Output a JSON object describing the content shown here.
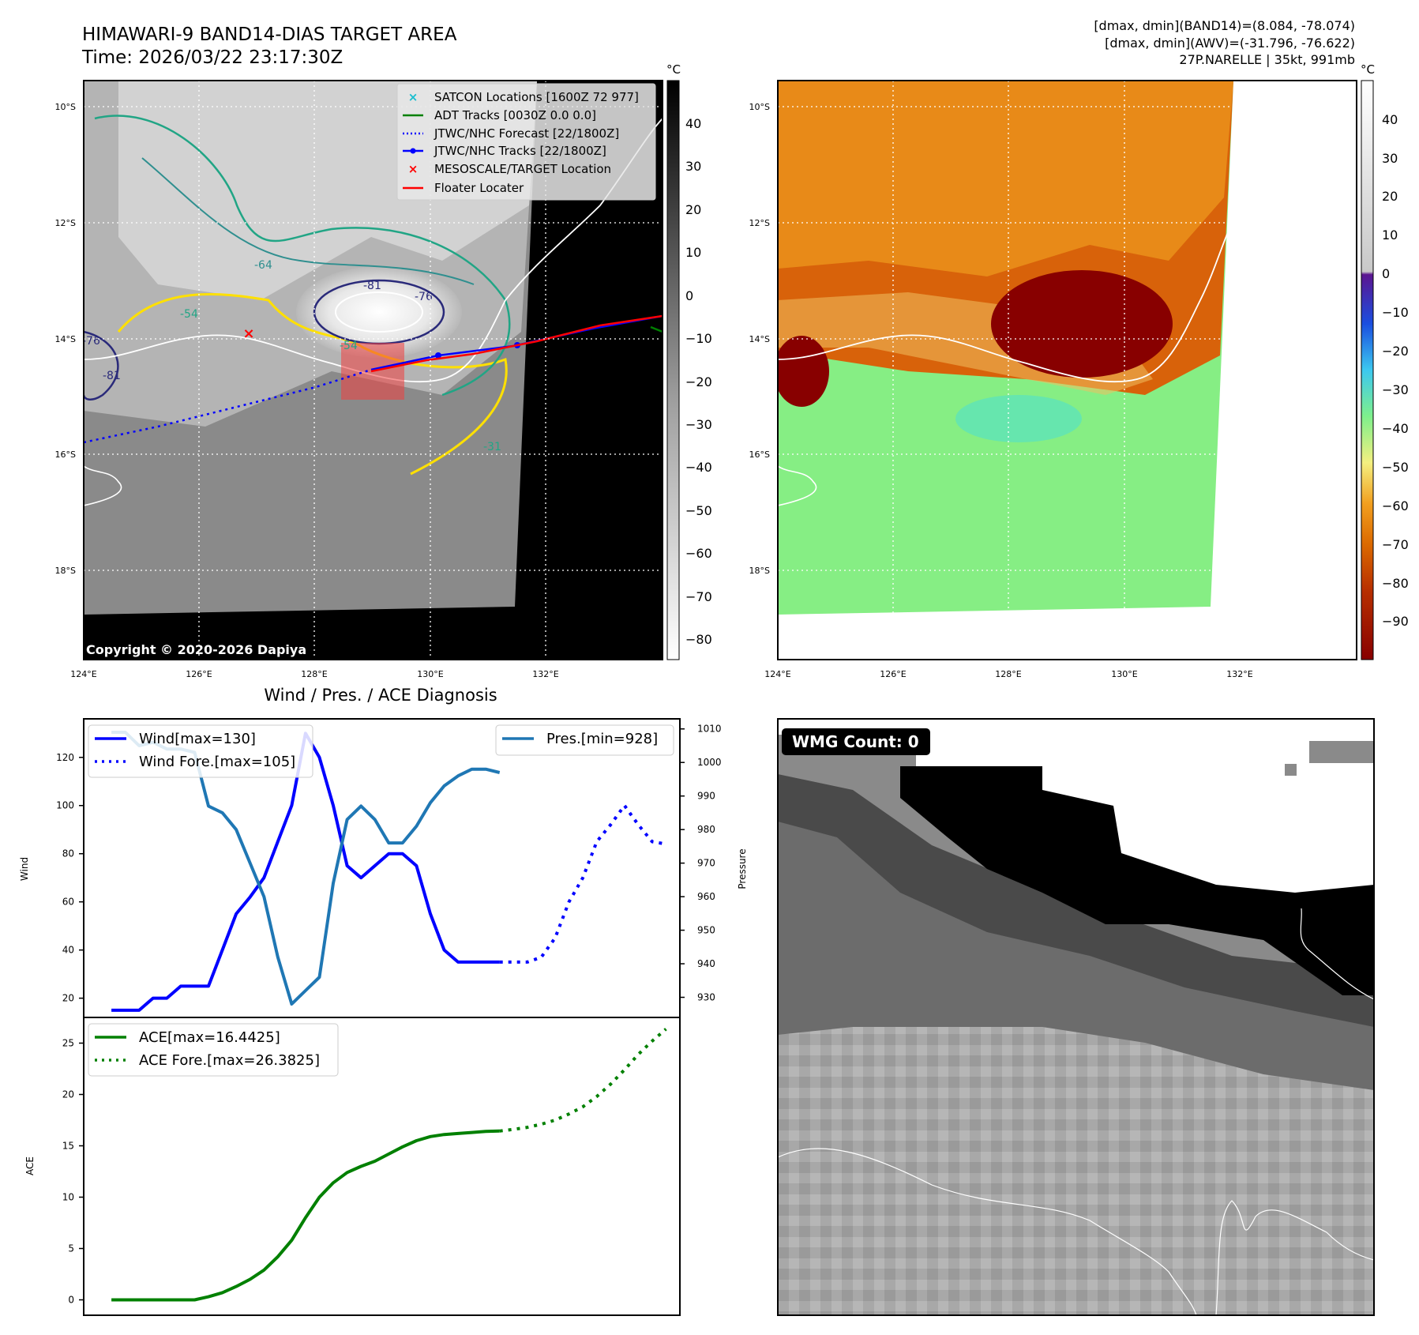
{
  "header": {
    "title_line1": "HIMAWARI-9 BAND14-DIAS TARGET AREA",
    "title_line2": "Time: 2026/03/22 23:17:30Z",
    "info_line1": "[dmax, dmin](BAND14)=(8.084, -78.074)",
    "info_line2": "[dmax, dmin](AWV)=(-31.796, -76.622)",
    "info_line3": "27P.NARELLE | 35kt, 991mb"
  },
  "maps": {
    "lat_labels": [
      "10°S",
      "12°S",
      "14°S",
      "16°S",
      "18°S"
    ],
    "lon_labels": [
      "124°E",
      "126°E",
      "128°E",
      "130°E",
      "132°E"
    ],
    "colorbar_unit": "°C",
    "ir_colorbar_ticks": [
      "40",
      "30",
      "20",
      "10",
      "0",
      "−10",
      "−20",
      "−30",
      "−40",
      "−50",
      "−60",
      "−70",
      "−80"
    ],
    "awv_colorbar_ticks": [
      "40",
      "30",
      "20",
      "10",
      "0",
      "−10",
      "−20",
      "−30",
      "−40",
      "−50",
      "−60",
      "−70",
      "−80",
      "−90"
    ],
    "contour_labels": [
      "-81",
      "-76",
      "-64",
      "-54",
      "-76",
      "-81",
      "-54",
      "-31"
    ],
    "copyright": "Copyright © 2020-2026 Dapiya",
    "legend": [
      {
        "label": "SATCON Locations [1600Z 72 977]",
        "symbol": "x",
        "color": "#17becf"
      },
      {
        "label": "ADT Tracks [0030Z 0.0 0.0]",
        "symbol": "line",
        "color": "#008000"
      },
      {
        "label": "JTWC/NHC Forecast [22/1800Z]",
        "symbol": "dotted",
        "color": "#0000ff"
      },
      {
        "label": "JTWC/NHC Tracks [22/1800Z]",
        "symbol": "line-dot",
        "color": "#0000ff"
      },
      {
        "label": "MESOSCALE/TARGET Location",
        "symbol": "x",
        "color": "#ff0000"
      },
      {
        "label": "Floater Locater",
        "symbol": "line",
        "color": "#ff0000"
      }
    ],
    "wmg_badge": "WMG Count: 0"
  },
  "chart_data": [
    {
      "type": "line",
      "title": "Wind / Pres. / ACE Diagnosis",
      "ylabel": "Wind",
      "y2label": "Pressure",
      "ylim": [
        12,
        136
      ],
      "y2lim": [
        924,
        1013
      ],
      "xlim": [
        -2,
        41
      ],
      "yticks": [
        20,
        40,
        60,
        80,
        100,
        120
      ],
      "y2ticks": [
        930,
        940,
        950,
        960,
        970,
        980,
        990,
        1000,
        1010
      ],
      "legend_left": [
        "Wind[max=130]",
        "Wind Fore.[max=105]"
      ],
      "legend_right": [
        "Pres.[min=928]"
      ],
      "series": [
        {
          "name": "Wind",
          "color": "#0000ff",
          "style": "solid",
          "x": [
            0,
            1,
            2,
            3,
            4,
            5,
            6,
            7,
            8,
            9,
            10,
            11,
            12,
            13,
            14,
            15,
            16,
            17,
            18,
            19,
            20,
            21,
            22,
            23,
            24,
            25,
            26,
            27,
            28
          ],
          "values": [
            15,
            15,
            15,
            20,
            20,
            25,
            25,
            25,
            40,
            55,
            62,
            70,
            85,
            100,
            130,
            120,
            100,
            75,
            70,
            75,
            80,
            80,
            75,
            55,
            40,
            35,
            35,
            35,
            35
          ]
        },
        {
          "name": "Wind Fore.",
          "color": "#0000ff",
          "style": "dotted",
          "x": [
            28,
            29,
            30,
            31,
            32,
            33,
            34,
            35,
            36,
            37,
            38,
            39,
            40
          ],
          "values": [
            35,
            35,
            35,
            37,
            45,
            60,
            70,
            85,
            92,
            100,
            92,
            85,
            84
          ]
        },
        {
          "name": "Pres.",
          "color": "#1f77b4",
          "style": "solid",
          "axis": "right",
          "x": [
            0,
            1,
            2,
            3,
            4,
            5,
            6,
            7,
            8,
            9,
            10,
            11,
            12,
            13,
            14,
            15,
            16,
            17,
            18,
            19,
            20,
            21,
            22,
            23,
            24,
            25,
            26,
            27,
            28
          ],
          "values": [
            1009,
            1009,
            1005,
            1006,
            1004,
            1004,
            1003,
            987,
            985,
            980,
            970,
            960,
            942,
            928,
            932,
            936,
            964,
            983,
            987,
            983,
            976,
            976,
            981,
            988,
            993,
            996,
            998,
            998,
            997
          ]
        }
      ]
    },
    {
      "type": "line",
      "ylabel": "ACE",
      "ylim": [
        -1.5,
        27.5
      ],
      "xlim": [
        -2,
        41
      ],
      "yticks": [
        0,
        5,
        10,
        15,
        20,
        25
      ],
      "legend": [
        "ACE[max=16.4425]",
        "ACE Fore.[max=26.3825]"
      ],
      "series": [
        {
          "name": "ACE",
          "color": "#008000",
          "style": "solid",
          "x": [
            0,
            1,
            2,
            3,
            4,
            5,
            6,
            7,
            8,
            9,
            10,
            11,
            12,
            13,
            14,
            15,
            16,
            17,
            18,
            19,
            20,
            21,
            22,
            23,
            24,
            25,
            26,
            27,
            28
          ],
          "values": [
            0,
            0,
            0,
            0,
            0,
            0,
            0,
            0.3,
            0.7,
            1.3,
            2.0,
            2.9,
            4.2,
            5.8,
            8.0,
            10.0,
            11.4,
            12.4,
            13.0,
            13.5,
            14.2,
            14.9,
            15.5,
            15.9,
            16.1,
            16.2,
            16.3,
            16.4,
            16.44
          ]
        },
        {
          "name": "ACE Fore.",
          "color": "#008000",
          "style": "dotted",
          "x": [
            28,
            29,
            30,
            31,
            32,
            33,
            34,
            35,
            36,
            37,
            38,
            39,
            40
          ],
          "values": [
            16.44,
            16.6,
            16.8,
            17.1,
            17.5,
            18.1,
            18.8,
            19.8,
            21.0,
            22.4,
            23.9,
            25.2,
            26.38
          ]
        }
      ]
    }
  ]
}
